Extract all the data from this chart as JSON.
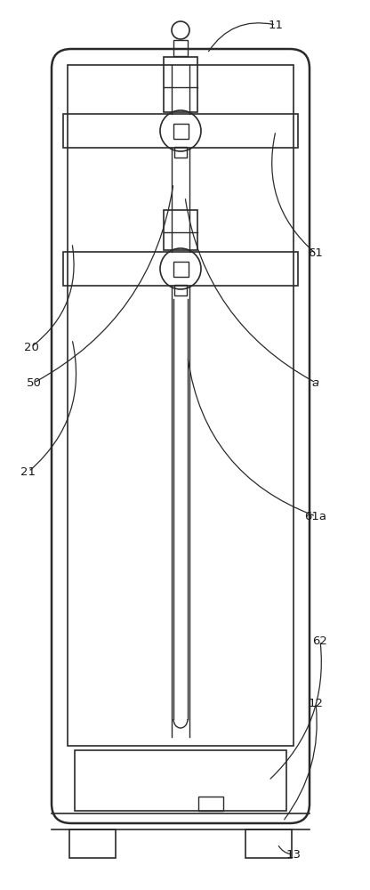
{
  "bg_color": "#ffffff",
  "line_color": "#2a2a2a",
  "lw_outer": 1.8,
  "lw_inner": 1.2,
  "lw_detail": 1.0,
  "fig_width": 4.16,
  "fig_height": 10.0,
  "dpi": 100
}
